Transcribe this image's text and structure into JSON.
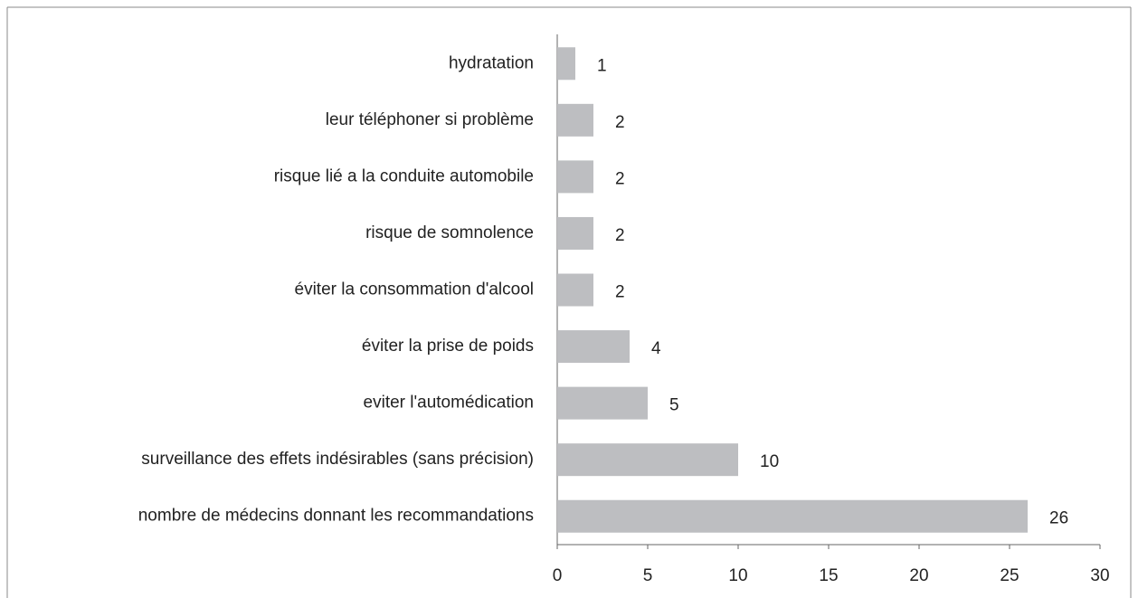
{
  "chart_data": {
    "type": "hbar",
    "categories": [
      "hydratation",
      "leur téléphoner si problème",
      "risque lié a la conduite automobile",
      "risque de somnolence",
      "éviter la consommation d'alcool",
      "éviter la prise de poids",
      "eviter l'automédication",
      "surveillance des effets indésirables (sans précision)",
      "nombre de médecins donnant les recommandations"
    ],
    "values": [
      1,
      2,
      2,
      2,
      2,
      4,
      5,
      10,
      26
    ],
    "color": "#bdbec1",
    "xlim": [
      0,
      30
    ],
    "xticks": [
      0,
      5,
      10,
      15,
      20,
      25,
      30
    ],
    "grid": false
  }
}
